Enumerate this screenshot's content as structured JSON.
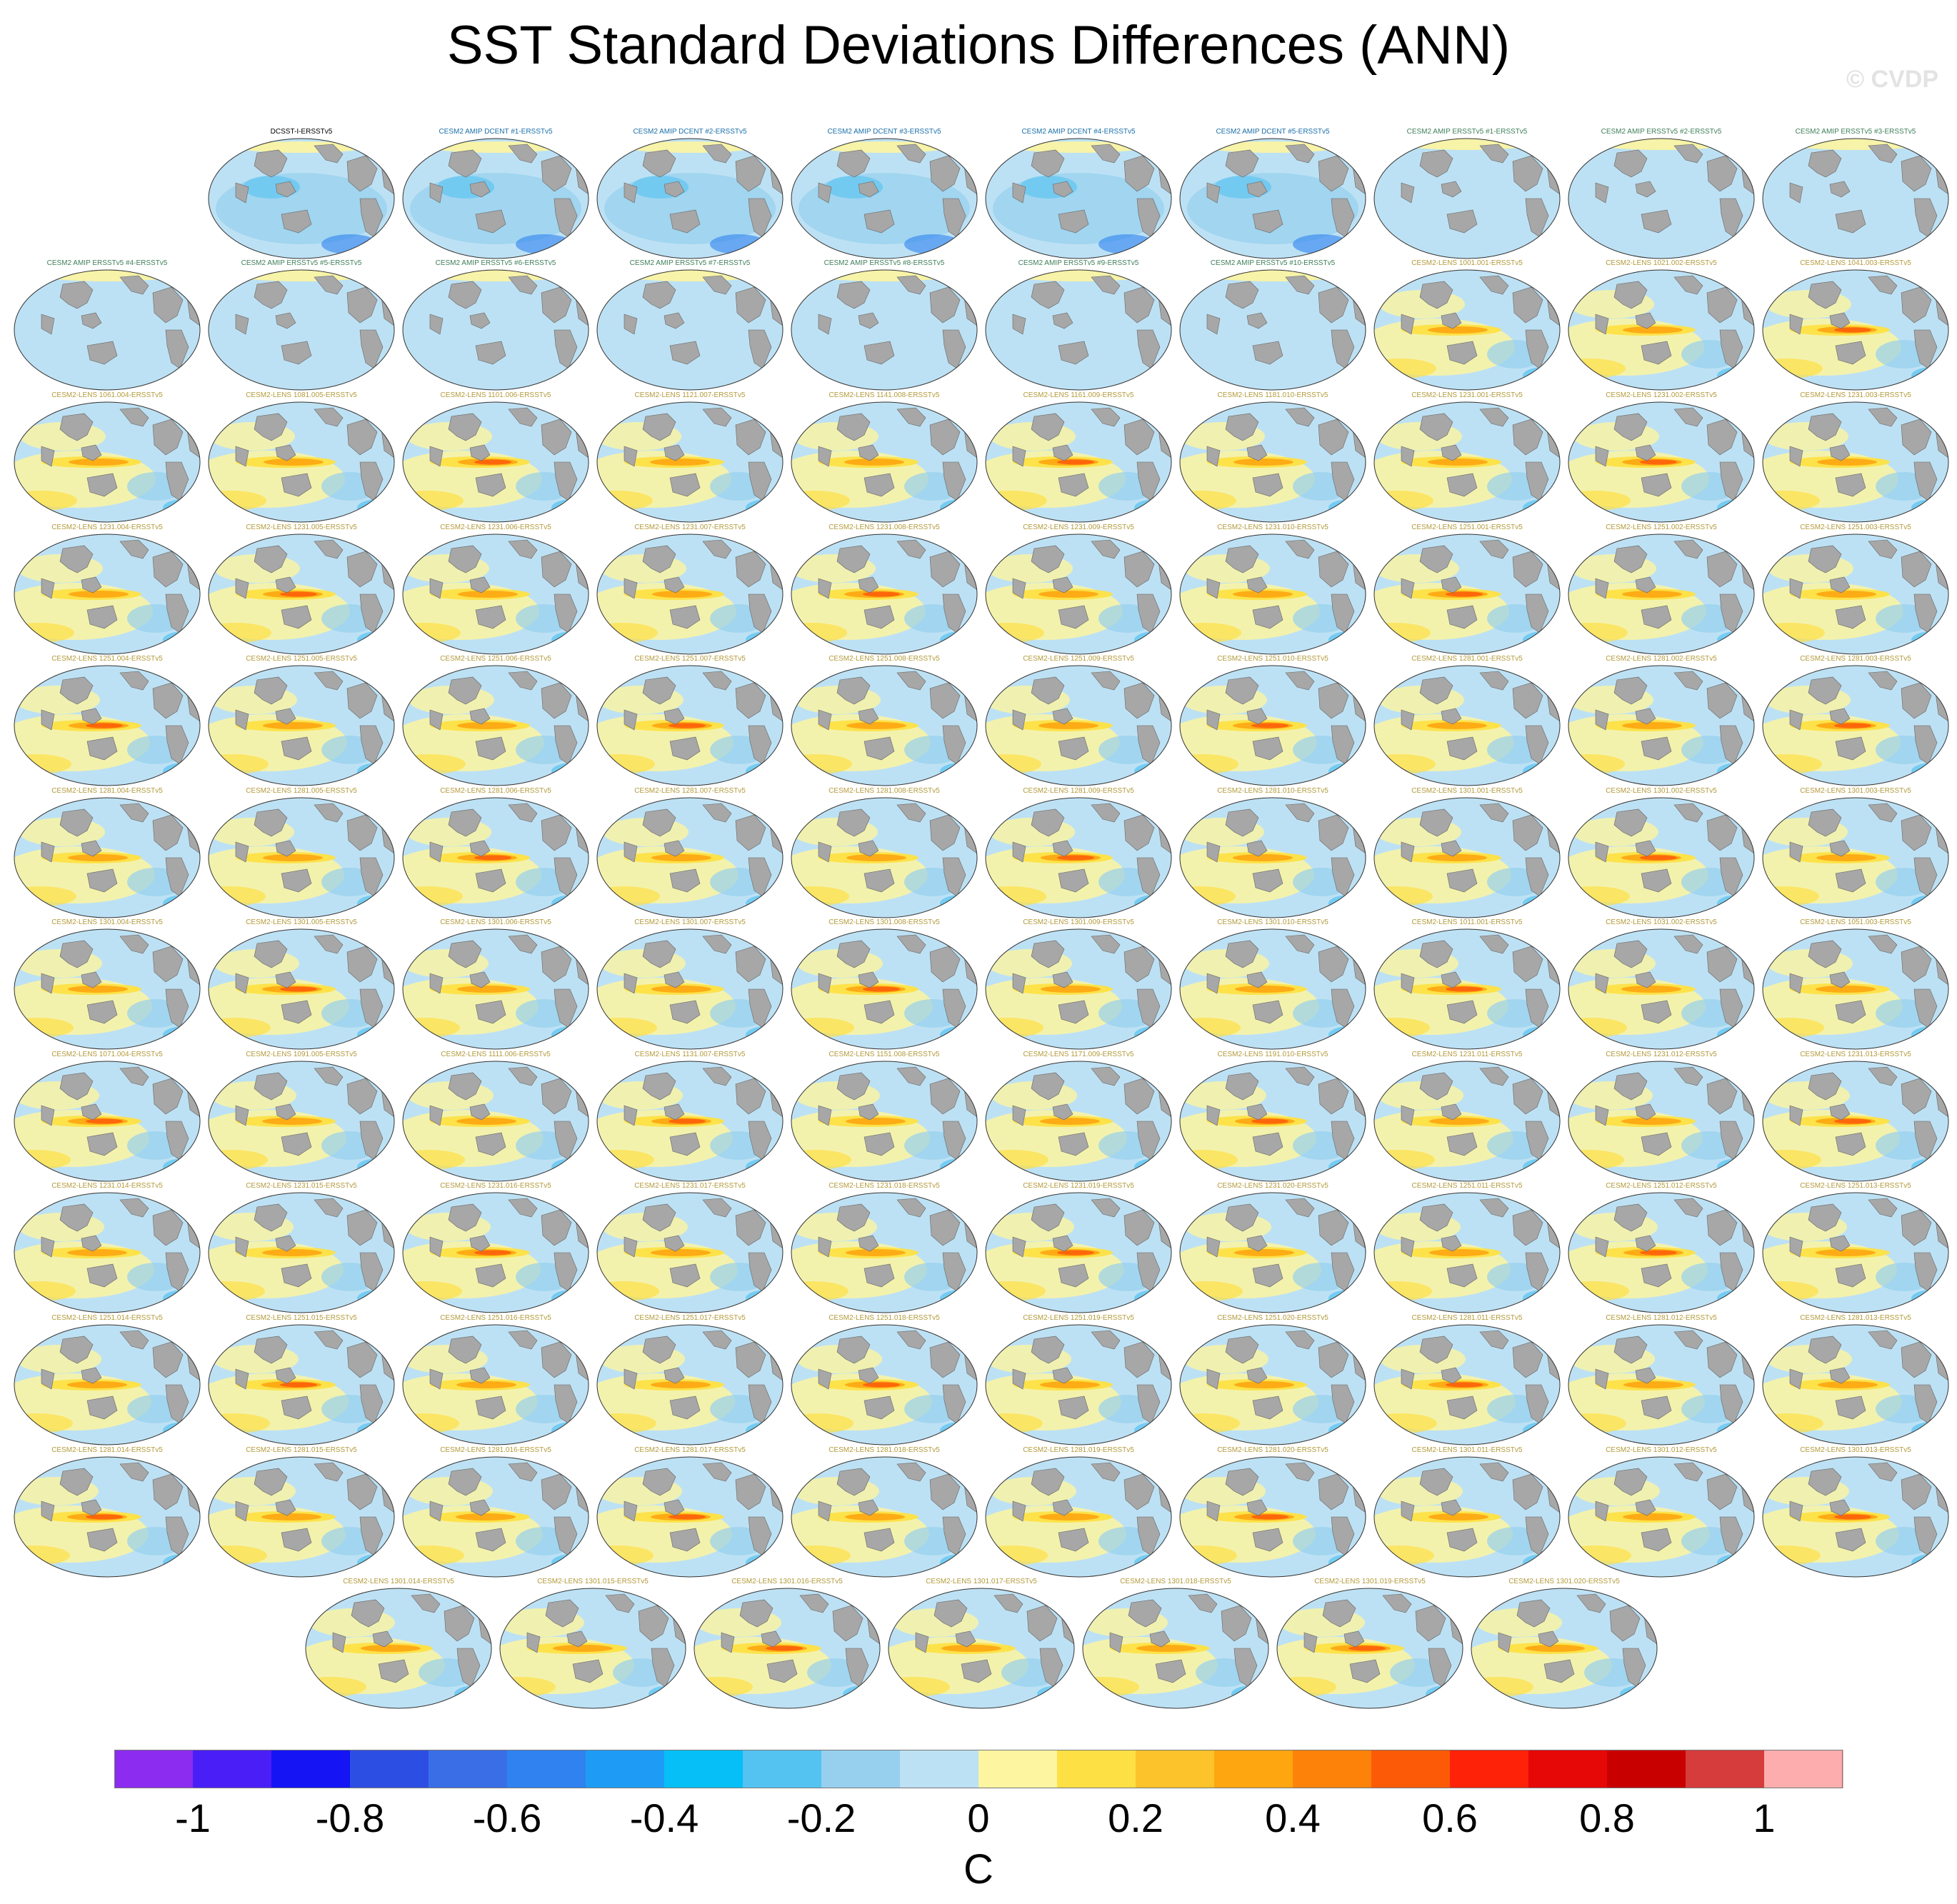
{
  "title": "SST Standard Deviations Differences (ANN)",
  "watermark": "© CVDP",
  "colors": {
    "land": "#a7a7a7",
    "ocean_background": "#bde1f4",
    "label_obs": "#000000",
    "label_dcent": "#1b6fa8",
    "label_ersst": "#3f7f5a",
    "label_lens": "#b39a3a"
  },
  "colorbar": {
    "colors": [
      "#8b2cf0",
      "#4a1ef6",
      "#1414f5",
      "#2d4ee3",
      "#3a6ee6",
      "#2f82f0",
      "#1e9cf5",
      "#06bff7",
      "#55c3f2",
      "#96d0ee",
      "#bde1f4",
      "#fdf5a0",
      "#fde044",
      "#fdc32a",
      "#fda610",
      "#fd820a",
      "#fd5a08",
      "#fd2208",
      "#e60707",
      "#c80000",
      "#d63c3c",
      "#fdadad"
    ],
    "ticks": [
      "-1",
      "-0.8",
      "-0.6",
      "-0.4",
      "-0.2",
      "0",
      "0.2",
      "0.4",
      "0.6",
      "0.8",
      "1"
    ],
    "units": "C"
  },
  "panels": [
    {
      "label": "DCSST-I-ERSSTv5",
      "kind": "obs"
    },
    {
      "label": "CESM2 AMIP DCENT #1-ERSSTv5",
      "kind": "dcent"
    },
    {
      "label": "CESM2 AMIP DCENT #2-ERSSTv5",
      "kind": "dcent"
    },
    {
      "label": "CESM2 AMIP DCENT #3-ERSSTv5",
      "kind": "dcent"
    },
    {
      "label": "CESM2 AMIP DCENT #4-ERSSTv5",
      "kind": "dcent"
    },
    {
      "label": "CESM2 AMIP DCENT #5-ERSSTv5",
      "kind": "dcent"
    },
    {
      "label": "CESM2 AMIP ERSSTv5 #1-ERSSTv5",
      "kind": "ersst"
    },
    {
      "label": "CESM2 AMIP ERSSTv5 #2-ERSSTv5",
      "kind": "ersst"
    },
    {
      "label": "CESM2 AMIP ERSSTv5 #3-ERSSTv5",
      "kind": "ersst"
    },
    {
      "label": "CESM2 AMIP ERSSTv5 #4-ERSSTv5",
      "kind": "ersst"
    },
    {
      "label": "CESM2 AMIP ERSSTv5 #5-ERSSTv5",
      "kind": "ersst"
    },
    {
      "label": "CESM2 AMIP ERSSTv5 #6-ERSSTv5",
      "kind": "ersst"
    },
    {
      "label": "CESM2 AMIP ERSSTv5 #7-ERSSTv5",
      "kind": "ersst"
    },
    {
      "label": "CESM2 AMIP ERSSTv5 #8-ERSSTv5",
      "kind": "ersst"
    },
    {
      "label": "CESM2 AMIP ERSSTv5 #9-ERSSTv5",
      "kind": "ersst"
    },
    {
      "label": "CESM2 AMIP ERSSTv5 #10-ERSSTv5",
      "kind": "ersst"
    },
    {
      "label": "CESM2-LENS 1001.001-ERSSTv5",
      "kind": "lens"
    },
    {
      "label": "CESM2-LENS 1021.002-ERSSTv5",
      "kind": "lens"
    },
    {
      "label": "CESM2-LENS 1041.003-ERSSTv5",
      "kind": "lens"
    },
    {
      "label": "CESM2-LENS 1061.004-ERSSTv5",
      "kind": "lens"
    },
    {
      "label": "CESM2-LENS 1081.005-ERSSTv5",
      "kind": "lens"
    },
    {
      "label": "CESM2-LENS 1101.006-ERSSTv5",
      "kind": "lens"
    },
    {
      "label": "CESM2-LENS 1121.007-ERSSTv5",
      "kind": "lens"
    },
    {
      "label": "CESM2-LENS 1141.008-ERSSTv5",
      "kind": "lens"
    },
    {
      "label": "CESM2-LENS 1161.009-ERSSTv5",
      "kind": "lens"
    },
    {
      "label": "CESM2-LENS 1181.010-ERSSTv5",
      "kind": "lens"
    },
    {
      "label": "CESM2-LENS 1231.001-ERSSTv5",
      "kind": "lens"
    },
    {
      "label": "CESM2-LENS 1231.002-ERSSTv5",
      "kind": "lens"
    },
    {
      "label": "CESM2-LENS 1231.003-ERSSTv5",
      "kind": "lens"
    },
    {
      "label": "CESM2-LENS 1231.004-ERSSTv5",
      "kind": "lens"
    },
    {
      "label": "CESM2-LENS 1231.005-ERSSTv5",
      "kind": "lens"
    },
    {
      "label": "CESM2-LENS 1231.006-ERSSTv5",
      "kind": "lens"
    },
    {
      "label": "CESM2-LENS 1231.007-ERSSTv5",
      "kind": "lens"
    },
    {
      "label": "CESM2-LENS 1231.008-ERSSTv5",
      "kind": "lens"
    },
    {
      "label": "CESM2-LENS 1231.009-ERSSTv5",
      "kind": "lens"
    },
    {
      "label": "CESM2-LENS 1231.010-ERSSTv5",
      "kind": "lens"
    },
    {
      "label": "CESM2-LENS 1251.001-ERSSTv5",
      "kind": "lens"
    },
    {
      "label": "CESM2-LENS 1251.002-ERSSTv5",
      "kind": "lens"
    },
    {
      "label": "CESM2-LENS 1251.003-ERSSTv5",
      "kind": "lens"
    },
    {
      "label": "CESM2-LENS 1251.004-ERSSTv5",
      "kind": "lens"
    },
    {
      "label": "CESM2-LENS 1251.005-ERSSTv5",
      "kind": "lens"
    },
    {
      "label": "CESM2-LENS 1251.006-ERSSTv5",
      "kind": "lens"
    },
    {
      "label": "CESM2-LENS 1251.007-ERSSTv5",
      "kind": "lens"
    },
    {
      "label": "CESM2-LENS 1251.008-ERSSTv5",
      "kind": "lens"
    },
    {
      "label": "CESM2-LENS 1251.009-ERSSTv5",
      "kind": "lens"
    },
    {
      "label": "CESM2-LENS 1251.010-ERSSTv5",
      "kind": "lens"
    },
    {
      "label": "CESM2-LENS 1281.001-ERSSTv5",
      "kind": "lens"
    },
    {
      "label": "CESM2-LENS 1281.002-ERSSTv5",
      "kind": "lens"
    },
    {
      "label": "CESM2-LENS 1281.003-ERSSTv5",
      "kind": "lens"
    },
    {
      "label": "CESM2-LENS 1281.004-ERSSTv5",
      "kind": "lens"
    },
    {
      "label": "CESM2-LENS 1281.005-ERSSTv5",
      "kind": "lens"
    },
    {
      "label": "CESM2-LENS 1281.006-ERSSTv5",
      "kind": "lens"
    },
    {
      "label": "CESM2-LENS 1281.007-ERSSTv5",
      "kind": "lens"
    },
    {
      "label": "CESM2-LENS 1281.008-ERSSTv5",
      "kind": "lens"
    },
    {
      "label": "CESM2-LENS 1281.009-ERSSTv5",
      "kind": "lens"
    },
    {
      "label": "CESM2-LENS 1281.010-ERSSTv5",
      "kind": "lens"
    },
    {
      "label": "CESM2-LENS 1301.001-ERSSTv5",
      "kind": "lens"
    },
    {
      "label": "CESM2-LENS 1301.002-ERSSTv5",
      "kind": "lens"
    },
    {
      "label": "CESM2-LENS 1301.003-ERSSTv5",
      "kind": "lens"
    },
    {
      "label": "CESM2-LENS 1301.004-ERSSTv5",
      "kind": "lens"
    },
    {
      "label": "CESM2-LENS 1301.005-ERSSTv5",
      "kind": "lens"
    },
    {
      "label": "CESM2-LENS 1301.006-ERSSTv5",
      "kind": "lens"
    },
    {
      "label": "CESM2-LENS 1301.007-ERSSTv5",
      "kind": "lens"
    },
    {
      "label": "CESM2-LENS 1301.008-ERSSTv5",
      "kind": "lens"
    },
    {
      "label": "CESM2-LENS 1301.009-ERSSTv5",
      "kind": "lens"
    },
    {
      "label": "CESM2-LENS 1301.010-ERSSTv5",
      "kind": "lens"
    },
    {
      "label": "CESM2-LENS 1011.001-ERSSTv5",
      "kind": "lens"
    },
    {
      "label": "CESM2-LENS 1031.002-ERSSTv5",
      "kind": "lens"
    },
    {
      "label": "CESM2-LENS 1051.003-ERSSTv5",
      "kind": "lens"
    },
    {
      "label": "CESM2-LENS 1071.004-ERSSTv5",
      "kind": "lens"
    },
    {
      "label": "CESM2-LENS 1091.005-ERSSTv5",
      "kind": "lens"
    },
    {
      "label": "CESM2-LENS 1111.006-ERSSTv5",
      "kind": "lens"
    },
    {
      "label": "CESM2-LENS 1131.007-ERSSTv5",
      "kind": "lens"
    },
    {
      "label": "CESM2-LENS 1151.008-ERSSTv5",
      "kind": "lens"
    },
    {
      "label": "CESM2-LENS 1171.009-ERSSTv5",
      "kind": "lens"
    },
    {
      "label": "CESM2-LENS 1191.010-ERSSTv5",
      "kind": "lens"
    },
    {
      "label": "CESM2-LENS 1231.011-ERSSTv5",
      "kind": "lens"
    },
    {
      "label": "CESM2-LENS 1231.012-ERSSTv5",
      "kind": "lens"
    },
    {
      "label": "CESM2-LENS 1231.013-ERSSTv5",
      "kind": "lens"
    },
    {
      "label": "CESM2-LENS 1231.014-ERSSTv5",
      "kind": "lens"
    },
    {
      "label": "CESM2-LENS 1231.015-ERSSTv5",
      "kind": "lens"
    },
    {
      "label": "CESM2-LENS 1231.016-ERSSTv5",
      "kind": "lens"
    },
    {
      "label": "CESM2-LENS 1231.017-ERSSTv5",
      "kind": "lens"
    },
    {
      "label": "CESM2-LENS 1231.018-ERSSTv5",
      "kind": "lens"
    },
    {
      "label": "CESM2-LENS 1231.019-ERSSTv5",
      "kind": "lens"
    },
    {
      "label": "CESM2-LENS 1231.020-ERSSTv5",
      "kind": "lens"
    },
    {
      "label": "CESM2-LENS 1251.011-ERSSTv5",
      "kind": "lens"
    },
    {
      "label": "CESM2-LENS 1251.012-ERSSTv5",
      "kind": "lens"
    },
    {
      "label": "CESM2-LENS 1251.013-ERSSTv5",
      "kind": "lens"
    },
    {
      "label": "CESM2-LENS 1251.014-ERSSTv5",
      "kind": "lens"
    },
    {
      "label": "CESM2-LENS 1251.015-ERSSTv5",
      "kind": "lens"
    },
    {
      "label": "CESM2-LENS 1251.016-ERSSTv5",
      "kind": "lens"
    },
    {
      "label": "CESM2-LENS 1251.017-ERSSTv5",
      "kind": "lens"
    },
    {
      "label": "CESM2-LENS 1251.018-ERSSTv5",
      "kind": "lens"
    },
    {
      "label": "CESM2-LENS 1251.019-ERSSTv5",
      "kind": "lens"
    },
    {
      "label": "CESM2-LENS 1251.020-ERSSTv5",
      "kind": "lens"
    },
    {
      "label": "CESM2-LENS 1281.011-ERSSTv5",
      "kind": "lens"
    },
    {
      "label": "CESM2-LENS 1281.012-ERSSTv5",
      "kind": "lens"
    },
    {
      "label": "CESM2-LENS 1281.013-ERSSTv5",
      "kind": "lens"
    },
    {
      "label": "CESM2-LENS 1281.014-ERSSTv5",
      "kind": "lens"
    },
    {
      "label": "CESM2-LENS 1281.015-ERSSTv5",
      "kind": "lens"
    },
    {
      "label": "CESM2-LENS 1281.016-ERSSTv5",
      "kind": "lens"
    },
    {
      "label": "CESM2-LENS 1281.017-ERSSTv5",
      "kind": "lens"
    },
    {
      "label": "CESM2-LENS 1281.018-ERSSTv5",
      "kind": "lens"
    },
    {
      "label": "CESM2-LENS 1281.019-ERSSTv5",
      "kind": "lens"
    },
    {
      "label": "CESM2-LENS 1281.020-ERSSTv5",
      "kind": "lens"
    },
    {
      "label": "CESM2-LENS 1301.011-ERSSTv5",
      "kind": "lens"
    },
    {
      "label": "CESM2-LENS 1301.012-ERSSTv5",
      "kind": "lens"
    },
    {
      "label": "CESM2-LENS 1301.013-ERSSTv5",
      "kind": "lens"
    },
    {
      "label": "CESM2-LENS 1301.014-ERSSTv5",
      "kind": "lens"
    },
    {
      "label": "CESM2-LENS 1301.015-ERSSTv5",
      "kind": "lens"
    },
    {
      "label": "CESM2-LENS 1301.016-ERSSTv5",
      "kind": "lens"
    },
    {
      "label": "CESM2-LENS 1301.017-ERSSTv5",
      "kind": "lens"
    },
    {
      "label": "CESM2-LENS 1301.018-ERSSTv5",
      "kind": "lens"
    },
    {
      "label": "CESM2-LENS 1301.019-ERSSTv5",
      "kind": "lens"
    },
    {
      "label": "CESM2-LENS 1301.020-ERSSTv5",
      "kind": "lens"
    }
  ]
}
